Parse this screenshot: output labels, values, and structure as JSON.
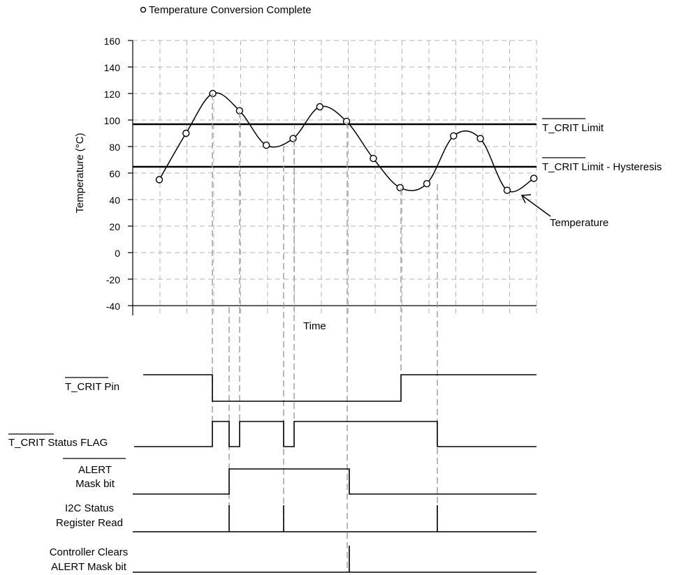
{
  "legend": {
    "label": "Temperature Conversion Complete"
  },
  "chart": {
    "ylabel": "Temperature (°C)",
    "xlabel": "Time",
    "ytick_labels": [
      "160",
      "140",
      "120",
      "100",
      "80",
      "60",
      "40",
      "20",
      "0",
      "-20",
      "-40"
    ],
    "limits": {
      "tcrit": {
        "label": "T_CRIT",
        "suffix": " Limit",
        "value": 97
      },
      "hyst": {
        "label": "T_CRIT",
        "suffix": " Limit - Hysteresis",
        "value": 65
      }
    },
    "temperature_label": "Temperature"
  },
  "chart_data": {
    "type": "line",
    "ylim": [
      -40,
      160
    ],
    "x_grid_intervals": 15,
    "series": [
      {
        "name": "Temperature",
        "x": [
          1,
          2,
          3,
          4,
          5,
          6,
          7,
          8,
          9,
          10,
          11,
          12,
          13,
          14,
          15
        ],
        "values": [
          55,
          90,
          120,
          107,
          81,
          86,
          110,
          99,
          71,
          49,
          52,
          88,
          86,
          47,
          56
        ]
      }
    ],
    "limit_lines": [
      {
        "label": "T_CRIT Limit",
        "value": 97
      },
      {
        "label": "T_CRIT Limit - Hysteresis",
        "value": 65
      }
    ]
  },
  "signals": {
    "tcrit_pin": {
      "label": "T_CRIT",
      "suffix": " Pin"
    },
    "status_flag": {
      "label": "T_CRIT",
      "suffix": " Status FLAG"
    },
    "alert_mask": {
      "line1": "ALERT",
      "line2": "Mask bit"
    },
    "i2c_read": {
      "line1": "I2C Status",
      "line2": "Register Read"
    },
    "controller_clears": {
      "line1": "Controller  Clears",
      "line2": "ALERT Mask bit"
    }
  }
}
